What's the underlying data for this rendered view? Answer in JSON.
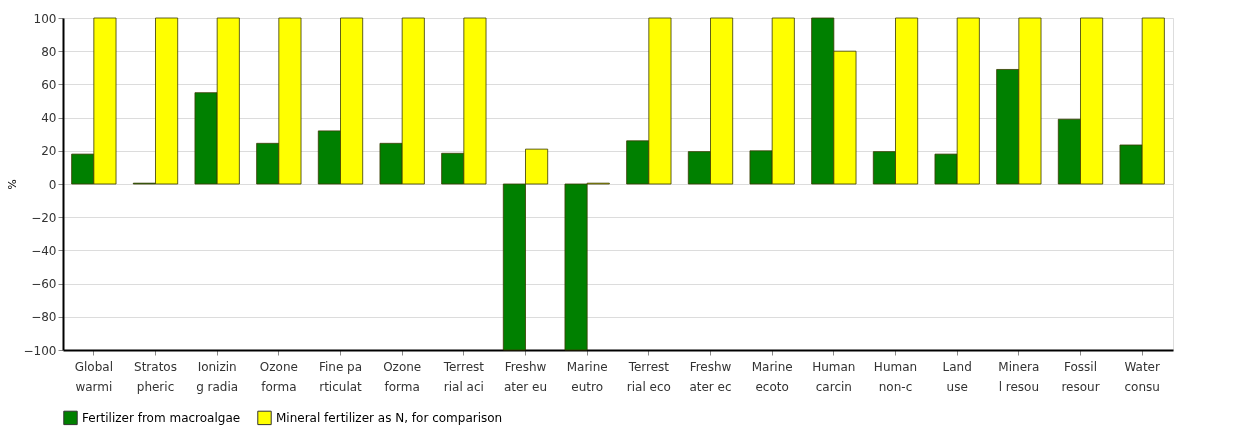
{
  "chart_data": {
    "type": "bar",
    "ylabel": "%",
    "categories": [
      "Global\nwarmi",
      "Stratos\npheric",
      "Ionizin\ng radia",
      "Ozone\nforma",
      "Fine pa\nrticulat",
      "Ozone\nforma",
      "Terrest\nrial aci",
      "Freshw\nater eu",
      "Marine\neutro",
      "Terrest\nrial eco",
      "Freshw\nater ec",
      "Marine\necoto",
      "Human\ncarcin",
      "Human\nnon-c",
      "Land\nuse",
      "Minera\nl resou",
      "Fossil\nresour",
      "Water\nconsu"
    ],
    "series": [
      {
        "name": "Fertilizer from macroalgae",
        "color": "#008000",
        "values": [
          18,
          0.5,
          55,
          24.5,
          32,
          24.5,
          18.5,
          -100,
          -100,
          26,
          19.5,
          20,
          100,
          19.5,
          18,
          69,
          39,
          23.5
        ]
      },
      {
        "name": "Mineral fertilizer as N, for comparison",
        "color": "#ffff00",
        "values": [
          100,
          100,
          100,
          100,
          100,
          100,
          100,
          21,
          0.5,
          100,
          100,
          100,
          80,
          100,
          100,
          100,
          100,
          100
        ]
      }
    ],
    "ylim": [
      -100,
      100
    ],
    "yticks": [
      -100,
      -80,
      -60,
      -40,
      -20,
      0,
      20,
      40,
      60,
      80,
      100
    ],
    "grid": "y",
    "legend": "bottom"
  }
}
